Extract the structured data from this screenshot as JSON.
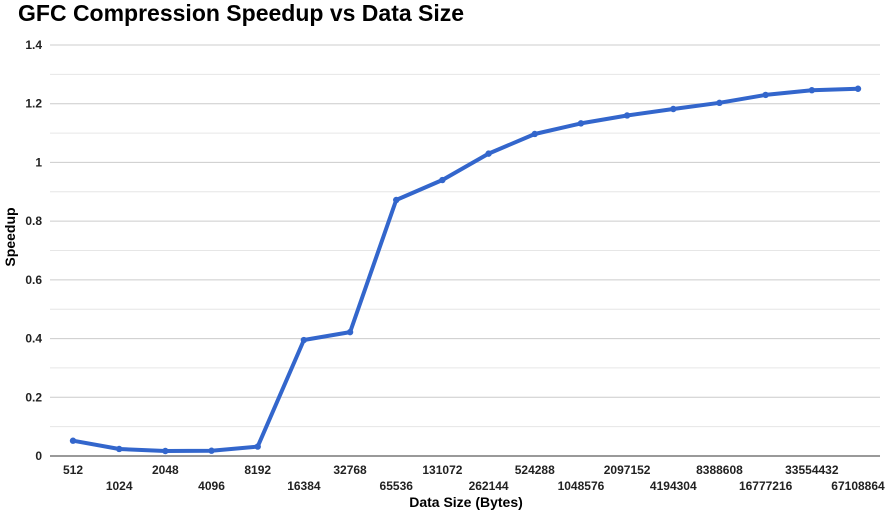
{
  "chart_data": {
    "type": "line",
    "title": "GFC Compression Speedup vs Data Size",
    "xlabel": "Data Size (Bytes)",
    "ylabel": "Speedup",
    "categories": [
      "512",
      "1024",
      "2048",
      "4096",
      "8192",
      "16384",
      "32768",
      "65536",
      "131072",
      "262144",
      "524288",
      "1048576",
      "2097152",
      "4194304",
      "8388608",
      "16777216",
      "33554432",
      "67108864"
    ],
    "series": [
      {
        "values": [
          0.052,
          0.024,
          0.017,
          0.018,
          0.032,
          0.395,
          0.422,
          0.872,
          0.94,
          1.03,
          1.097,
          1.133,
          1.16,
          1.182,
          1.203,
          1.23,
          1.246,
          1.251
        ]
      }
    ],
    "ylim": [
      0,
      1.4
    ],
    "yticks": [
      0,
      0.2,
      0.4,
      0.6,
      0.8,
      1,
      1.2,
      1.4
    ],
    "grid": true,
    "legend": "none",
    "colors": {
      "line": "#3366cc",
      "grid": "#cccccc",
      "minor_grid": "#e6e6e6",
      "axis": "#333333"
    }
  }
}
